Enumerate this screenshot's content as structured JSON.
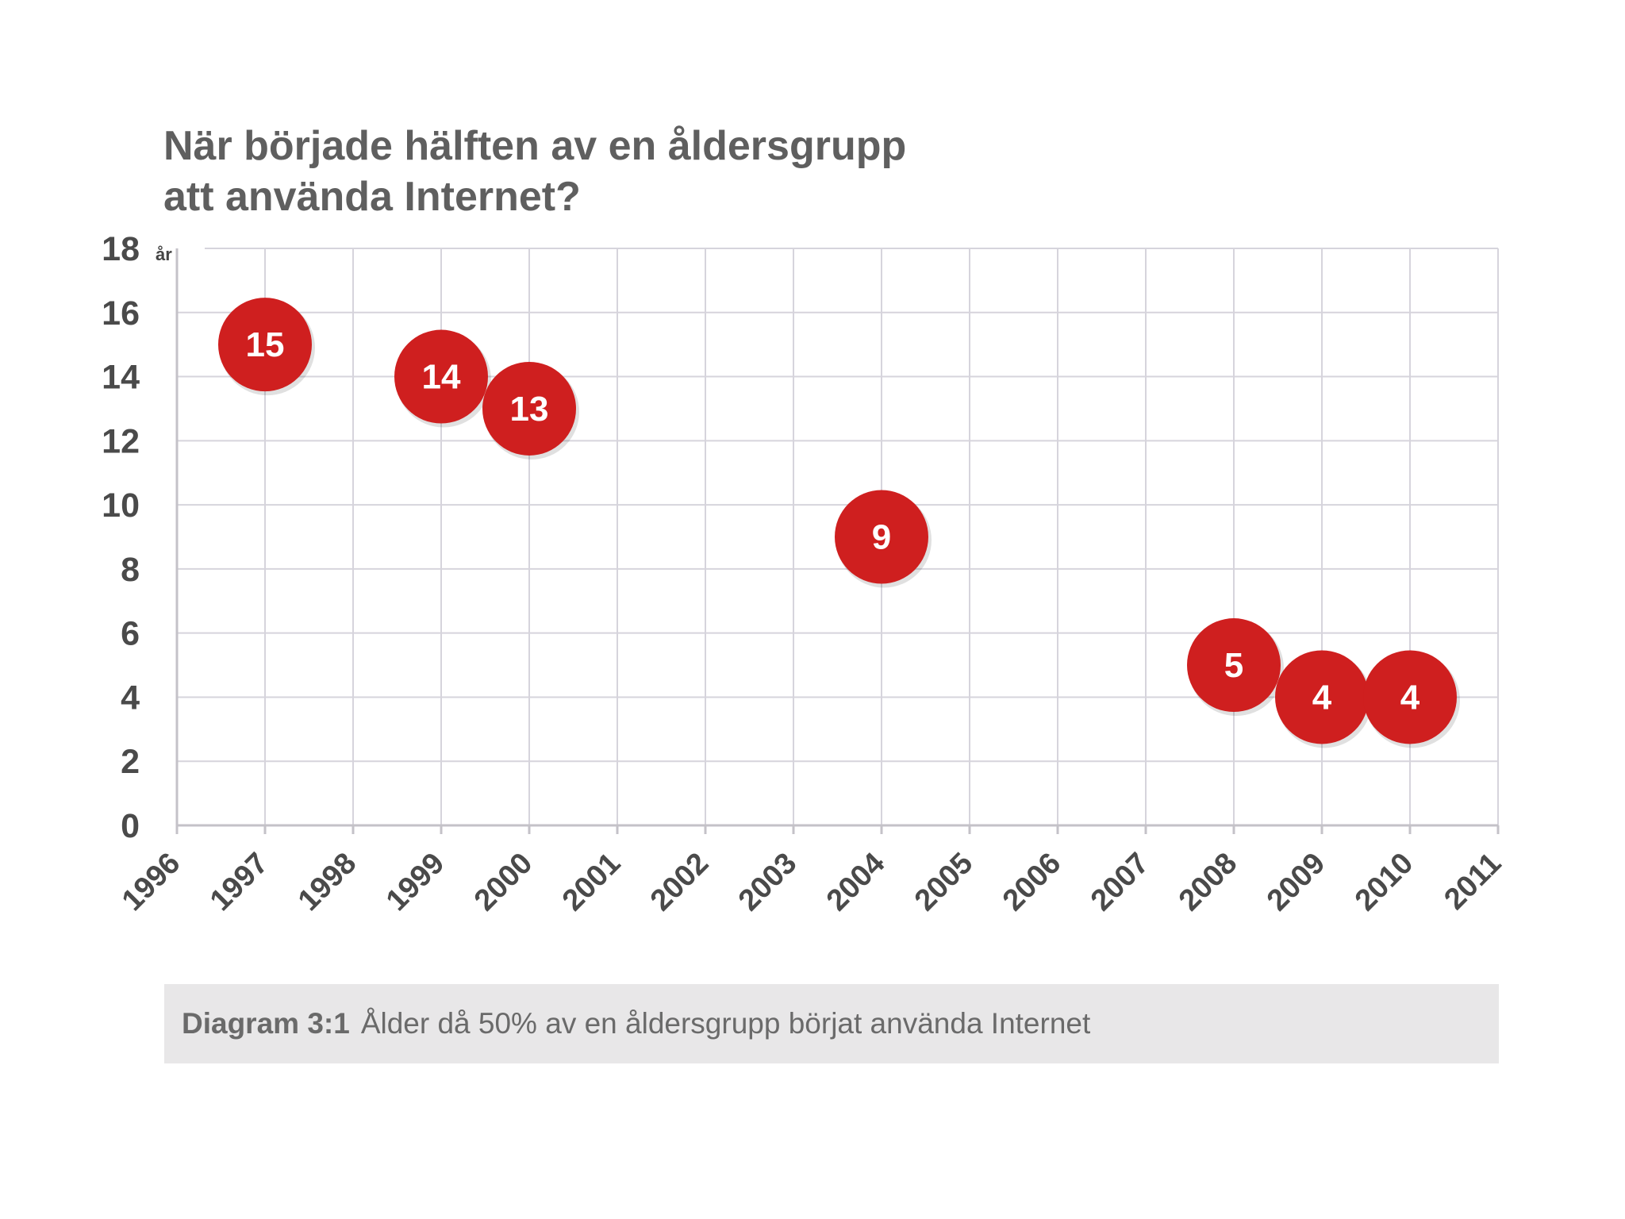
{
  "chart_data": {
    "type": "scatter",
    "title_lines": [
      "När började hälften av en åldersgrupp",
      "att använda Internet?"
    ],
    "ylabel": "år",
    "xlabel": "",
    "x_ticks": [
      1996,
      1997,
      1998,
      1999,
      2000,
      2001,
      2002,
      2003,
      2004,
      2005,
      2006,
      2007,
      2008,
      2009,
      2010,
      2011
    ],
    "y_ticks": [
      0,
      2,
      4,
      6,
      8,
      10,
      12,
      14,
      16,
      18
    ],
    "xlim": [
      1996,
      2011
    ],
    "ylim": [
      0,
      18
    ],
    "grid": true,
    "series": [
      {
        "name": "Ålder",
        "color": "#cf1f1f",
        "points": [
          {
            "x": 1997,
            "y": 15,
            "label": "15"
          },
          {
            "x": 1999,
            "y": 14,
            "label": "14"
          },
          {
            "x": 2000,
            "y": 13,
            "label": "13"
          },
          {
            "x": 2004,
            "y": 9,
            "label": "9"
          },
          {
            "x": 2008,
            "y": 5,
            "label": "5"
          },
          {
            "x": 2009,
            "y": 4,
            "label": "4"
          },
          {
            "x": 2010,
            "y": 4,
            "label": "4"
          }
        ]
      }
    ]
  },
  "caption": {
    "label": "Diagram 3:1",
    "text": "Ålder då 50% av en åldersgrupp börjat använda Internet"
  }
}
